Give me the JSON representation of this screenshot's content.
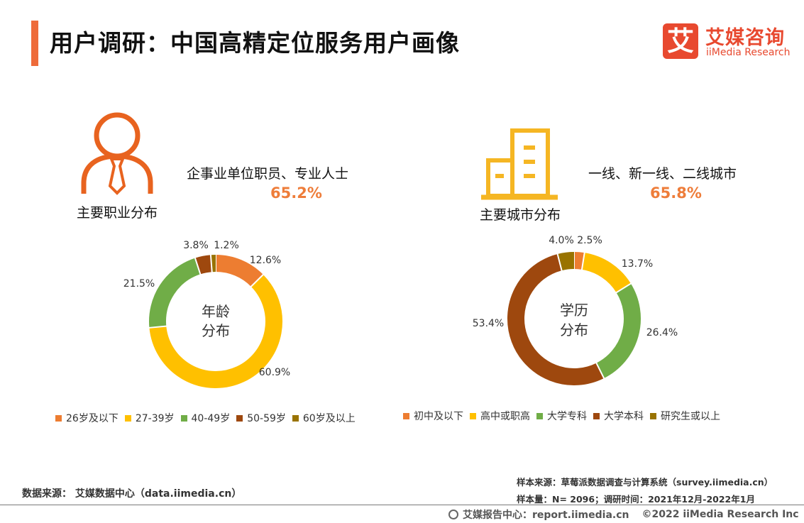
{
  "header": {
    "title": "用户调研：中国高精定位服务用户画像",
    "logo_mark": "艾",
    "logo_cn": "艾媒咨询",
    "logo_en": "iiMedia Research"
  },
  "occupation": {
    "caption": "主要职业分布",
    "label": "企事业单位职员、专业人士",
    "value": "65.2%",
    "icon": "person-icon"
  },
  "city": {
    "caption": "主要城市分布",
    "label": "一线、新一线、二线城市",
    "value": "65.8%",
    "icon": "building-icon"
  },
  "colors": {
    "accent": "#ee6b3a",
    "brand": "#e8492f",
    "highlight_value": "#ee7d3a"
  },
  "chart_data": [
    {
      "type": "pie",
      "donut": true,
      "center_label": [
        "年龄",
        "分布"
      ],
      "categories": [
        "26岁及以下",
        "27-39岁",
        "40-49岁",
        "50-59岁",
        "60岁及以上"
      ],
      "values": [
        12.6,
        60.9,
        21.5,
        3.8,
        1.2
      ],
      "labels": [
        "12.6%",
        "60.9%",
        "21.5%",
        "3.8%",
        "1.2%"
      ],
      "colors": [
        "#ed7d31",
        "#ffc000",
        "#70ad47",
        "#9e480e",
        "#997300"
      ],
      "legend_position": "bottom"
    },
    {
      "type": "pie",
      "donut": true,
      "center_label": [
        "学历",
        "分布"
      ],
      "categories": [
        "初中及以下",
        "高中或职高",
        "大学专科",
        "大学本科",
        "研究生或以上"
      ],
      "values": [
        2.5,
        13.7,
        26.4,
        53.4,
        4.0
      ],
      "labels": [
        "2.5%",
        "13.7%",
        "26.4%",
        "53.4%",
        "4.0%"
      ],
      "colors": [
        "#ed7d31",
        "#ffc000",
        "#70ad47",
        "#9e480e",
        "#997300"
      ],
      "legend_position": "bottom"
    }
  ],
  "footer": {
    "source_left": "数据来源： 艾媒数据中心（data.iimedia.cn）",
    "sample_source": "样本来源：草莓派数据调查与计算系统（survey.iimedia.cn）",
    "sample_size": "样本量：N= 2096；调研时间：2021年12月-2022年1月",
    "report_center": "艾媒报告中心：report.iimedia.cn",
    "copyright": "©2022  iiMedia Research  Inc"
  }
}
